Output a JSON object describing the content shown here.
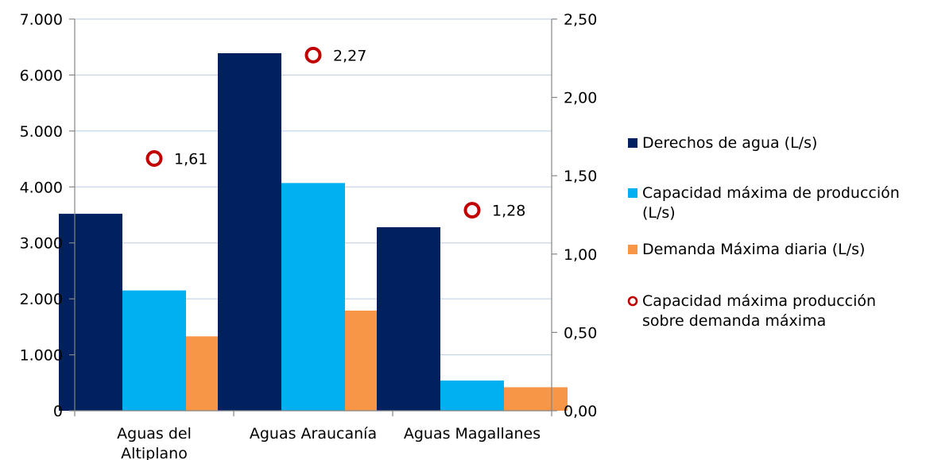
{
  "chart_data": {
    "type": "bar",
    "categories": [
      [
        "Aguas del",
        "Altiplano"
      ],
      [
        "Aguas Araucanía"
      ],
      [
        "Aguas Magallanes"
      ]
    ],
    "series": [
      {
        "name": "Derechos de agua (L/s)",
        "legend_lines": [
          "Derechos de agua (L/s)"
        ],
        "axis": "left",
        "type": "bar",
        "color": "#002060",
        "values": [
          3520,
          6390,
          3280
        ]
      },
      {
        "name": "Capacidad máxima de producción (L/s)",
        "legend_lines": [
          "Capacidad máxima de producción",
          "(L/s)"
        ],
        "axis": "left",
        "type": "bar",
        "color": "#00B0F0",
        "values": [
          2150,
          4070,
          540
        ]
      },
      {
        "name": "Demanda Máxima diaria (L/s)",
        "legend_lines": [
          "Demanda Máxima diaria (L/s)"
        ],
        "axis": "left",
        "type": "bar",
        "color": "#F79646",
        "values": [
          1330,
          1790,
          420
        ]
      },
      {
        "name": "Capacidad máxima producción sobre demanda máxima",
        "legend_lines": [
          "Capacidad máxima producción",
          "sobre demanda máxima"
        ],
        "axis": "right",
        "type": "scatter",
        "marker": "circle-open",
        "color": "#C00000",
        "values": [
          1.61,
          2.27,
          1.28
        ],
        "labels": [
          "1,61",
          "2,27",
          "1,28"
        ]
      }
    ],
    "y_left": {
      "range": [
        0,
        7000
      ],
      "ticks": [
        0,
        1000,
        2000,
        3000,
        4000,
        5000,
        6000,
        7000
      ],
      "tick_labels": [
        "0",
        "1.000",
        "2.000",
        "3.000",
        "4.000",
        "5.000",
        "6.000",
        "7.000"
      ]
    },
    "y_right": {
      "range": [
        0,
        2.5
      ],
      "ticks": [
        0,
        0.5,
        1,
        1.5,
        2,
        2.5
      ],
      "tick_labels": [
        "0,00",
        "0,50",
        "1,00",
        "1,50",
        "2,00",
        "2,50"
      ]
    },
    "grid": true,
    "grid_color": "#B9CDE5",
    "legend_position": "right"
  }
}
